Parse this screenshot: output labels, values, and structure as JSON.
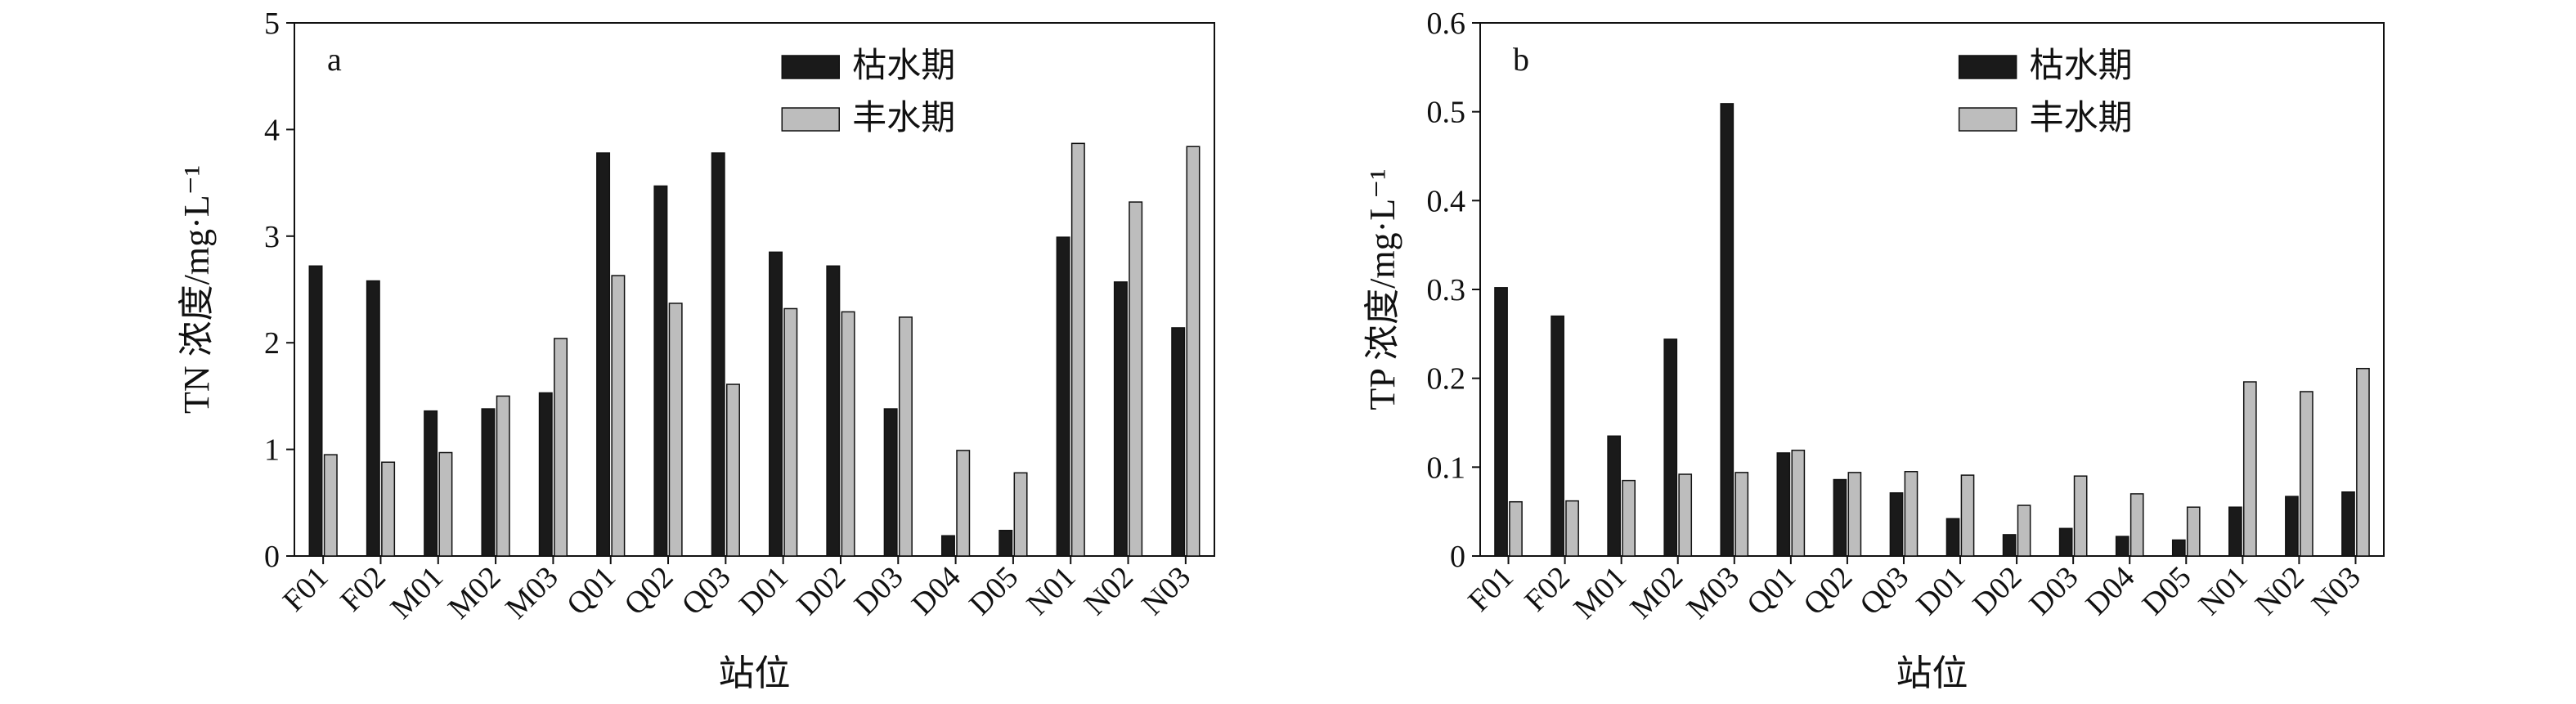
{
  "figure": {
    "bar_colors": {
      "dry": "#1a1a1a",
      "wet": "#bdbdbd",
      "stroke": "#111111"
    }
  },
  "chart_data": [
    {
      "type": "bar",
      "panel_label": "a",
      "title": "",
      "xlabel": "站位",
      "ylabel": "TN 浓度/mg·L⁻¹",
      "ylim": [
        0,
        5
      ],
      "yticks": [
        "0",
        "1",
        "2",
        "3",
        "4",
        "5"
      ],
      "grid": false,
      "legend_position": "top-right",
      "categories": [
        "F01",
        "F02",
        "M01",
        "M02",
        "M03",
        "Q01",
        "Q02",
        "Q03",
        "D01",
        "D02",
        "D03",
        "D04",
        "D05",
        "N01",
        "N02",
        "N03"
      ],
      "series": [
        {
          "name": "枯水期",
          "values": [
            2.72,
            2.58,
            1.36,
            1.38,
            1.53,
            3.78,
            3.47,
            3.78,
            2.85,
            2.72,
            1.38,
            0.19,
            0.24,
            2.99,
            2.57,
            2.14
          ]
        },
        {
          "name": "丰水期",
          "values": [
            0.95,
            0.88,
            0.97,
            1.5,
            2.04,
            2.63,
            2.37,
            1.61,
            2.32,
            2.29,
            2.24,
            0.99,
            0.78,
            3.87,
            3.32,
            3.84
          ]
        }
      ]
    },
    {
      "type": "bar",
      "panel_label": "b",
      "title": "",
      "xlabel": "站位",
      "ylabel": "TP 浓度/mg·L⁻¹",
      "ylim": [
        0,
        0.6
      ],
      "yticks": [
        "0",
        "0.1",
        "0.2",
        "0.3",
        "0.4",
        "0.5",
        "0.6"
      ],
      "grid": false,
      "legend_position": "top-right",
      "categories": [
        "F01",
        "F02",
        "M01",
        "M02",
        "M03",
        "Q01",
        "Q02",
        "Q03",
        "D01",
        "D02",
        "D03",
        "D04",
        "D05",
        "N01",
        "N02",
        "N03"
      ],
      "series": [
        {
          "name": "枯水期",
          "values": [
            0.302,
            0.27,
            0.135,
            0.244,
            0.509,
            0.116,
            0.086,
            0.071,
            0.042,
            0.024,
            0.031,
            0.022,
            0.018,
            0.055,
            0.067,
            0.072
          ]
        },
        {
          "name": "丰水期",
          "values": [
            0.061,
            0.062,
            0.085,
            0.092,
            0.094,
            0.119,
            0.094,
            0.095,
            0.091,
            0.057,
            0.09,
            0.07,
            0.055,
            0.196,
            0.185,
            0.211
          ]
        }
      ]
    }
  ]
}
